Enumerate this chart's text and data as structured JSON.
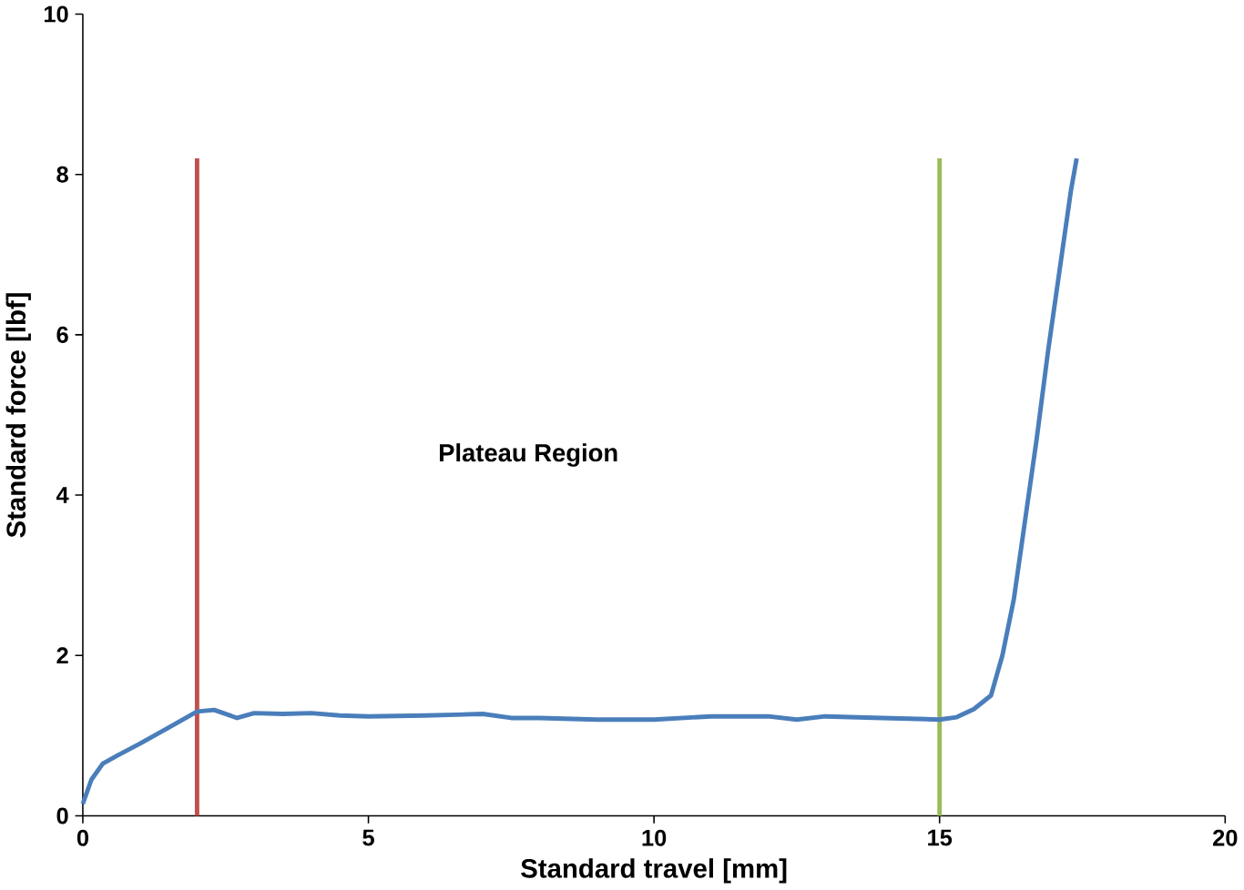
{
  "chart_data": {
    "type": "line",
    "xlabel": "Standard travel [mm]",
    "ylabel": "Standard force [lbf]",
    "xlim": [
      0,
      20
    ],
    "ylim": [
      0,
      10
    ],
    "xticks": [
      0,
      5,
      10,
      15,
      20
    ],
    "yticks": [
      0,
      2,
      4,
      6,
      8,
      10
    ],
    "annotations": [
      "Plateau Region"
    ],
    "ref_lines": [
      {
        "axis": "x",
        "value": 2,
        "color": "#c0504d"
      },
      {
        "axis": "x",
        "value": 15,
        "color": "#9bbb59"
      }
    ],
    "series": [
      {
        "color": "#4a7ebb",
        "x": [
          0,
          0.15,
          0.35,
          0.6,
          1,
          1.5,
          2,
          2.3,
          2.7,
          3,
          3.5,
          4,
          4.5,
          5,
          6,
          7,
          7.5,
          8,
          9,
          10,
          11,
          12,
          12.5,
          13,
          14,
          15,
          15.3,
          15.6,
          15.9,
          16.1,
          16.3,
          16.5,
          16.7,
          16.9,
          17.1,
          17.3,
          17.4
        ],
        "values": [
          0.15,
          0.45,
          0.65,
          0.75,
          0.9,
          1.1,
          1.3,
          1.32,
          1.22,
          1.28,
          1.27,
          1.28,
          1.25,
          1.24,
          1.25,
          1.27,
          1.22,
          1.22,
          1.2,
          1.2,
          1.24,
          1.24,
          1.2,
          1.24,
          1.22,
          1.2,
          1.23,
          1.33,
          1.5,
          2,
          2.7,
          3.7,
          4.7,
          5.8,
          6.8,
          7.8,
          8.2
        ]
      }
    ]
  }
}
